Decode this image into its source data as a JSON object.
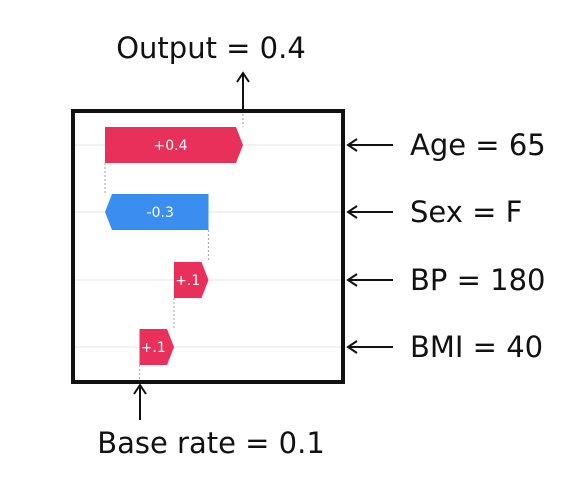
{
  "chart_data": {
    "type": "waterfall",
    "output_label": "Output = 0.4",
    "base_label": "Base rate = 0.1",
    "base_value": 0.1,
    "output_value": 0.4,
    "features": [
      {
        "name": "Age = 65",
        "contribution": 0.4,
        "value_label": "+0.4",
        "start": 0.0,
        "end": 0.4
      },
      {
        "name": "Sex = F",
        "contribution": -0.3,
        "value_label": "-0.3",
        "start": 0.3,
        "end": 0.0
      },
      {
        "name": "BP = 180",
        "contribution": 0.1,
        "value_label": "+.1",
        "start": 0.2,
        "end": 0.3
      },
      {
        "name": "BMI = 40",
        "contribution": 0.1,
        "value_label": "+.1",
        "start": 0.1,
        "end": 0.2
      }
    ],
    "colors": {
      "positive": "#e8305a",
      "negative": "#3a8ef0"
    },
    "grid": true
  }
}
